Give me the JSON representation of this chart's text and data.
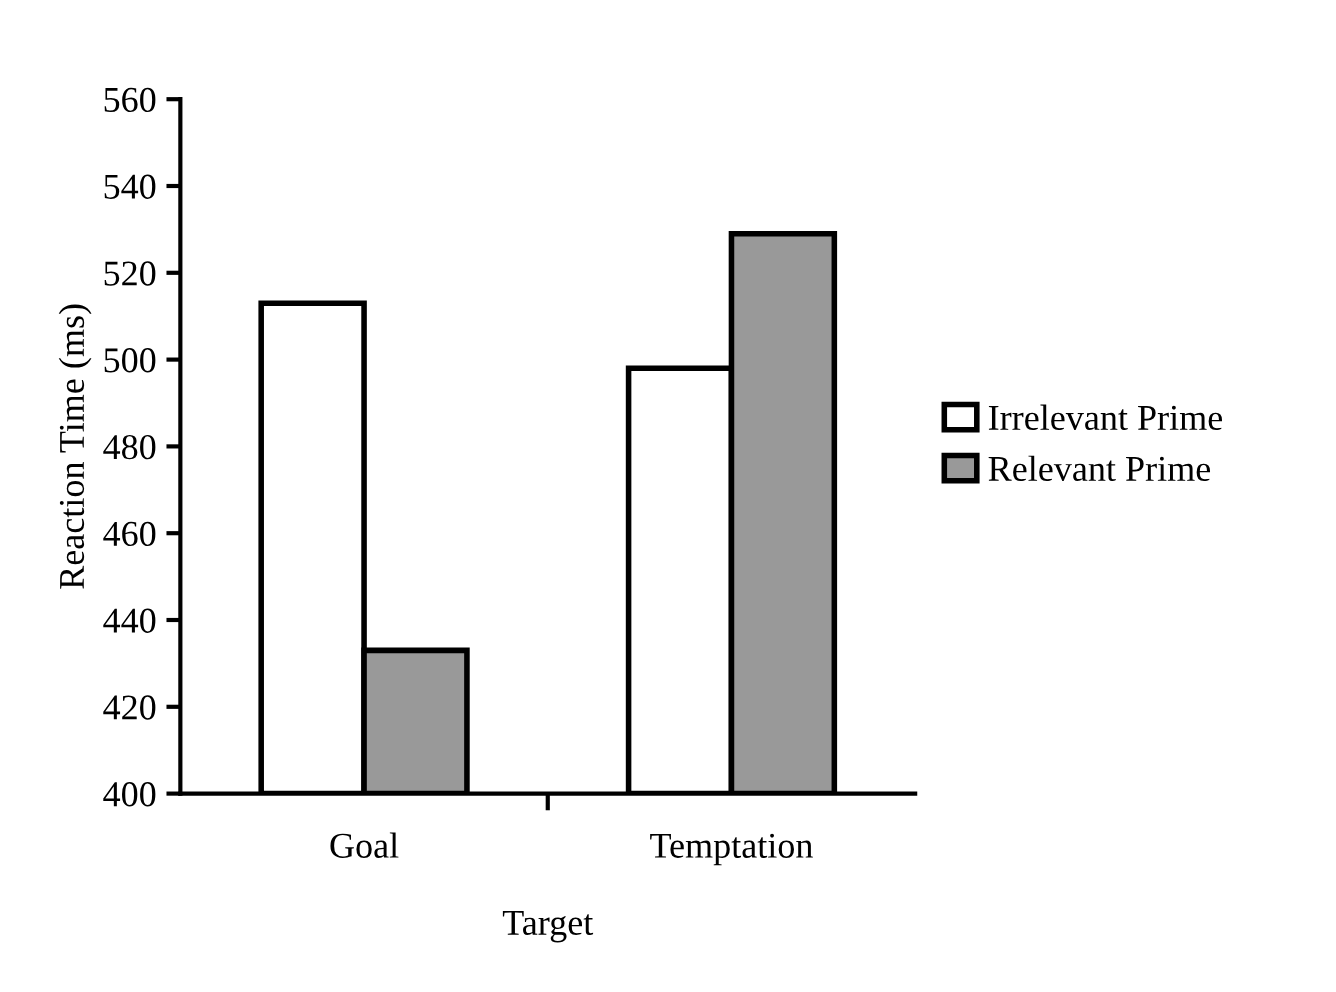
{
  "chart_data": {
    "type": "bar",
    "xlabel": "Target",
    "ylabel": "Reaction Time (ms)",
    "categories": [
      "Goal",
      "Temptation"
    ],
    "series": [
      {
        "name": "Irrelevant Prime",
        "color": "#ffffff",
        "values": [
          513,
          498
        ]
      },
      {
        "name": "Relevant Prime",
        "color": "#999999",
        "values": [
          433,
          529
        ]
      }
    ],
    "ylim": [
      400,
      560
    ],
    "yticks": [
      400,
      420,
      440,
      460,
      480,
      500,
      520,
      540,
      560
    ],
    "grid": false,
    "legend": "right"
  }
}
